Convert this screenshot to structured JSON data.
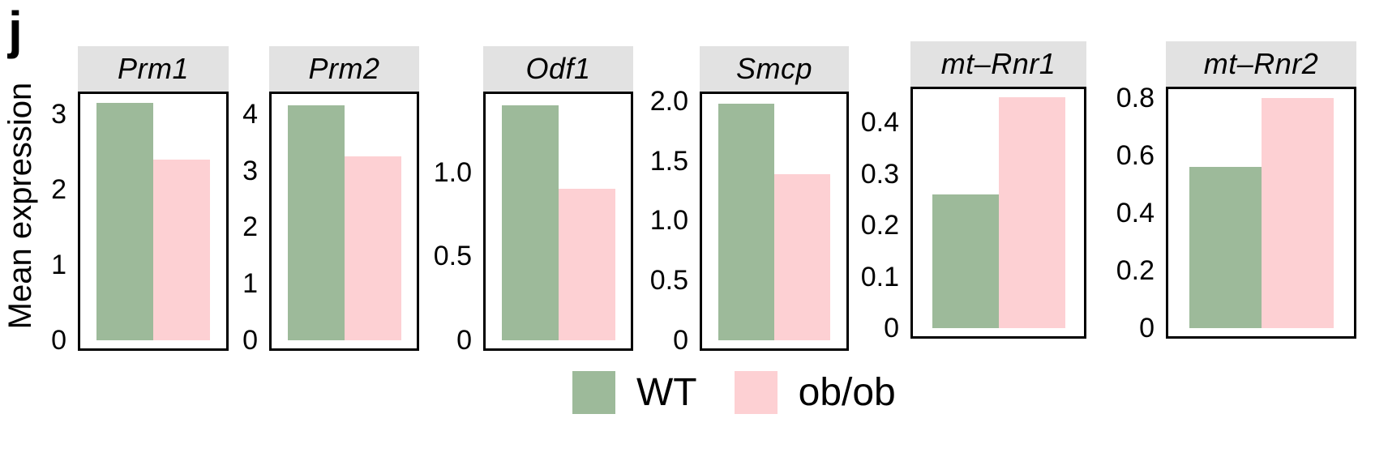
{
  "panel_label": "j",
  "y_axis_label": "Mean expression",
  "colors": {
    "wt": "#9dba9a",
    "obob": "#fdd0d3",
    "strip_bg": "#e2e2e2",
    "panel_border": "#000000"
  },
  "legend": {
    "items": [
      {
        "label": "WT",
        "color": "#9dba9a"
      },
      {
        "label": "ob/ob",
        "color": "#fdd0d3"
      }
    ]
  },
  "chart_data": [
    {
      "type": "bar",
      "title": "Prm1",
      "categories": [
        "WT",
        "ob/ob"
      ],
      "values": [
        3.15,
        2.4
      ],
      "ylabel": "Mean expression",
      "ylim": [
        0,
        3.3
      ],
      "yticks": [
        {
          "value": 0,
          "label": "0"
        },
        {
          "value": 1,
          "label": "1"
        },
        {
          "value": 2,
          "label": "2"
        },
        {
          "value": 3,
          "label": "3"
        }
      ]
    },
    {
      "type": "bar",
      "title": "Prm2",
      "categories": [
        "WT",
        "ob/ob"
      ],
      "values": [
        4.15,
        3.25
      ],
      "ylabel": "Mean expression",
      "ylim": [
        0,
        4.4
      ],
      "yticks": [
        {
          "value": 0,
          "label": "0"
        },
        {
          "value": 1,
          "label": "1"
        },
        {
          "value": 2,
          "label": "2"
        },
        {
          "value": 3,
          "label": "3"
        },
        {
          "value": 4,
          "label": "4"
        }
      ]
    },
    {
      "type": "bar",
      "title": "Odf1",
      "categories": [
        "WT",
        "ob/ob"
      ],
      "values": [
        1.4,
        0.9
      ],
      "ylabel": "Mean expression",
      "ylim": [
        0,
        1.48
      ],
      "yticks": [
        {
          "value": 0,
          "label": "0"
        },
        {
          "value": 0.5,
          "label": "0.5"
        },
        {
          "value": 1.0,
          "label": "1.0"
        }
      ]
    },
    {
      "type": "bar",
      "title": "Smcp",
      "categories": [
        "WT",
        "ob/ob"
      ],
      "values": [
        1.98,
        1.39
      ],
      "ylabel": "Mean expression",
      "ylim": [
        0,
        2.08
      ],
      "yticks": [
        {
          "value": 0,
          "label": "0"
        },
        {
          "value": 0.5,
          "label": "0.5"
        },
        {
          "value": 1.0,
          "label": "1.0"
        },
        {
          "value": 1.5,
          "label": "1.5"
        },
        {
          "value": 2.0,
          "label": "2.0"
        }
      ]
    },
    {
      "type": "bar",
      "title": "mt–Rnr1",
      "categories": [
        "WT",
        "ob/ob"
      ],
      "values": [
        0.26,
        0.45
      ],
      "ylabel": "Mean expression",
      "ylim": [
        0,
        0.47
      ],
      "yticks": [
        {
          "value": 0,
          "label": "0"
        },
        {
          "value": 0.1,
          "label": "0.1"
        },
        {
          "value": 0.2,
          "label": "0.2"
        },
        {
          "value": 0.3,
          "label": "0.3"
        },
        {
          "value": 0.4,
          "label": "0.4"
        }
      ]
    },
    {
      "type": "bar",
      "title": "mt–Rnr2",
      "categories": [
        "WT",
        "ob/ob"
      ],
      "values": [
        0.56,
        0.8
      ],
      "ylabel": "Mean expression",
      "ylim": [
        0,
        0.84
      ],
      "yticks": [
        {
          "value": 0,
          "label": "0"
        },
        {
          "value": 0.2,
          "label": "0.2"
        },
        {
          "value": 0.4,
          "label": "0.4"
        },
        {
          "value": 0.6,
          "label": "0.6"
        },
        {
          "value": 0.8,
          "label": "0.8"
        }
      ]
    }
  ]
}
